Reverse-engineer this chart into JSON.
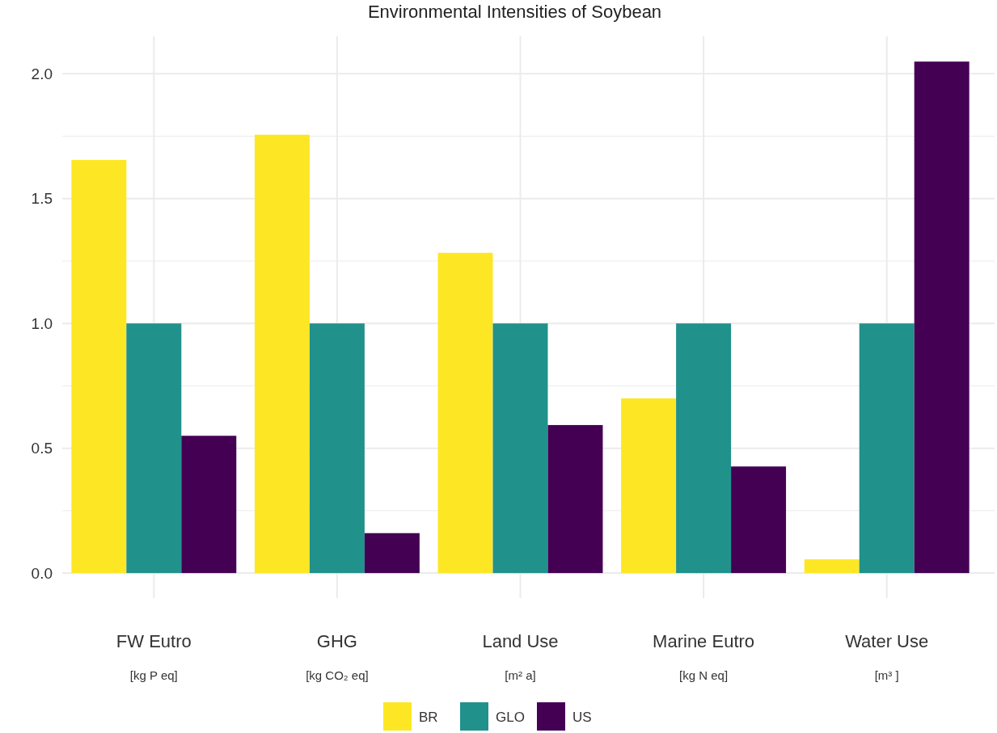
{
  "chart_data": {
    "type": "bar",
    "title": "Environmental Intensities of Soybean",
    "categories": [
      "FW Eutro\n[kg P eq]",
      "GHG\n[kg CO₂ eq]",
      "Land Use\n[m² a]",
      "Marine Eutro\n[kg N eq]",
      "Water Use\n[m³ ]"
    ],
    "series": [
      {
        "name": "BR",
        "color": "#fde725",
        "values": [
          1.655,
          1.756,
          1.283,
          0.7,
          0.055
        ]
      },
      {
        "name": "GLO",
        "color": "#21918c",
        "values": [
          1.0,
          1.0,
          1.0,
          1.0,
          1.0
        ]
      },
      {
        "name": "US",
        "color": "#440154",
        "values": [
          0.55,
          0.16,
          0.593,
          0.427,
          2.049
        ]
      }
    ],
    "ylim": [
      -0.1,
      2.15
    ],
    "yticks": [
      {
        "value": 0,
        "label": "0.0"
      },
      {
        "value": 0.25,
        "label": null
      },
      {
        "value": 0.5,
        "label": "0.5"
      },
      {
        "value": 0.75,
        "label": null
      },
      {
        "value": 1,
        "label": "1.0"
      },
      {
        "value": 1.25,
        "label": null
      },
      {
        "value": 1.5,
        "label": "1.5"
      },
      {
        "value": 1.75,
        "label": null
      },
      {
        "value": 2,
        "label": "2.0"
      }
    ],
    "grid": true,
    "legend": "bottom"
  }
}
